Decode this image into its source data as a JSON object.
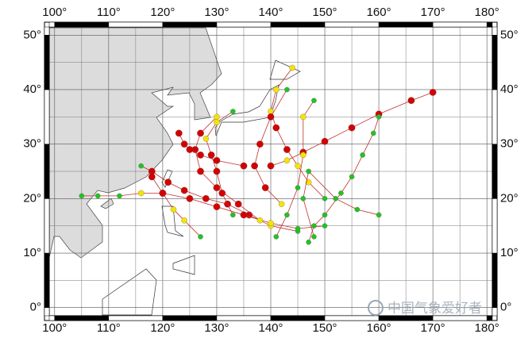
{
  "chart_data": {
    "type": "map",
    "xlim": [
      99,
      181
    ],
    "ylim": [
      -1.5,
      51.5
    ],
    "xticks": [
      {
        "value": 100,
        "label": "100°"
      },
      {
        "value": 110,
        "label": "110°"
      },
      {
        "value": 120,
        "label": "120°"
      },
      {
        "value": 130,
        "label": "130°"
      },
      {
        "value": 140,
        "label": "140°"
      },
      {
        "value": 150,
        "label": "150°"
      },
      {
        "value": 160,
        "label": "160°"
      },
      {
        "value": 170,
        "label": "170°"
      },
      {
        "value": 180,
        "label": "180°"
      }
    ],
    "yticks": [
      {
        "value": 0,
        "label": "0°"
      },
      {
        "value": 10,
        "label": "10°"
      },
      {
        "value": 20,
        "label": "20°"
      },
      {
        "value": 30,
        "label": "30°"
      },
      {
        "value": 40,
        "label": "40°"
      },
      {
        "value": 50,
        "label": "50°"
      }
    ],
    "grid": true,
    "tracks": [
      {
        "x": [
          170,
          166,
          160,
          155,
          150,
          146,
          143,
          140
        ],
        "y": [
          39.5,
          38,
          35.5,
          33,
          30.5,
          28.5,
          27,
          26
        ],
        "colors": [
          "#d40000",
          "#d40000",
          "#d40000",
          "#d40000",
          "#d40000",
          "#d40000",
          "#f5e400",
          "#d40000"
        ]
      },
      {
        "x": [
          145,
          140,
          136,
          132,
          128,
          124,
          121,
          118,
          116
        ],
        "y": [
          14,
          15,
          17,
          19,
          20,
          21.5,
          23,
          25,
          26
        ],
        "colors": [
          "#22c322",
          "#f5e400",
          "#d40000",
          "#d40000",
          "#d40000",
          "#d40000",
          "#d40000",
          "#d40000",
          "#22c322"
        ]
      },
      {
        "x": [
          150,
          145,
          140,
          135,
          130,
          125,
          120,
          116,
          112,
          108,
          105
        ],
        "y": [
          15,
          14.5,
          15.5,
          17,
          18.5,
          20,
          21,
          21,
          20.5,
          20.5,
          20.5
        ],
        "colors": [
          "#22c322",
          "#22c322",
          "#f5e400",
          "#d40000",
          "#d40000",
          "#d40000",
          "#d40000",
          "#f5e400",
          "#22c322",
          "#22c322",
          "#22c322"
        ]
      },
      {
        "x": [
          138,
          134,
          130,
          127,
          126,
          127,
          130
        ],
        "y": [
          16,
          19,
          22,
          25,
          29,
          32,
          35
        ],
        "colors": [
          "#f5e400",
          "#d40000",
          "#d40000",
          "#d40000",
          "#d40000",
          "#d40000",
          "#f5e400"
        ]
      },
      {
        "x": [
          150,
          147,
          145,
          143,
          141,
          140,
          141,
          144
        ],
        "y": [
          20,
          23,
          26,
          29,
          33,
          36,
          40,
          44
        ],
        "colors": [
          "#22c322",
          "#f5e400",
          "#f5e400",
          "#d40000",
          "#d40000",
          "#f5e400",
          "#f5e400",
          "#f5e400"
        ]
      },
      {
        "x": [
          160,
          159,
          157,
          155,
          153,
          150,
          148,
          147
        ],
        "y": [
          35,
          32,
          28,
          24,
          21,
          17,
          15,
          12
        ],
        "colors": [
          "#22c322",
          "#22c322",
          "#22c322",
          "#22c322",
          "#22c322",
          "#22c322",
          "#22c322",
          "#22c322"
        ]
      },
      {
        "x": [
          148,
          146,
          147,
          152,
          156,
          160
        ],
        "y": [
          13,
          20,
          25,
          20,
          18,
          17
        ],
        "colors": [
          "#22c322",
          "#22c322",
          "#22c322",
          "#22c322",
          "#22c322",
          "#22c322"
        ]
      },
      {
        "x": [
          141,
          143,
          145,
          146,
          146,
          148
        ],
        "y": [
          13,
          17,
          22,
          28,
          35,
          38
        ],
        "colors": [
          "#22c322",
          "#22c322",
          "#22c322",
          "#f5e400",
          "#f5e400",
          "#22c322"
        ]
      },
      {
        "x": [
          127,
          124,
          122,
          120,
          118
        ],
        "y": [
          13,
          16,
          18,
          21,
          24
        ],
        "colors": [
          "#22c322",
          "#f5e400",
          "#f5e400",
          "#d40000",
          "#d40000"
        ]
      },
      {
        "x": [
          135,
          130,
          127,
          125,
          124,
          123
        ],
        "y": [
          26,
          27,
          28,
          29,
          30,
          32
        ],
        "colors": [
          "#d40000",
          "#d40000",
          "#d40000",
          "#d40000",
          "#d40000",
          "#d40000"
        ]
      },
      {
        "x": [
          133,
          131,
          130,
          129,
          128,
          130,
          133
        ],
        "y": [
          17,
          21,
          25,
          28,
          31,
          34,
          36
        ],
        "colors": [
          "#22c322",
          "#d40000",
          "#d40000",
          "#d40000",
          "#f5e400",
          "#f5e400",
          "#22c322"
        ]
      },
      {
        "x": [
          142,
          139,
          137,
          138,
          140,
          143
        ],
        "y": [
          19,
          22,
          26,
          30,
          35,
          40
        ],
        "colors": [
          "#f5e400",
          "#d40000",
          "#d40000",
          "#d40000",
          "#d40000",
          "#22c322"
        ]
      }
    ],
    "watermark": "中国气象爱好者"
  }
}
